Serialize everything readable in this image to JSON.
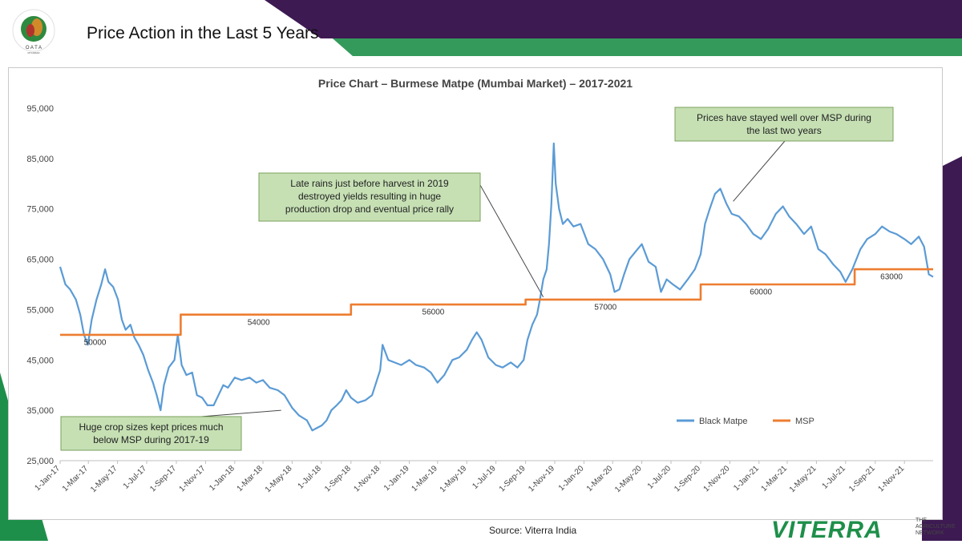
{
  "slide": {
    "title": "Price Action in the Last 5 Years",
    "logo_letters": "O A T A",
    "logo_sub": "MYANMAR",
    "source": "Source: Viterra India",
    "brand_name": "VITERRA",
    "brand_tagline": [
      "THE",
      "AGRICULTURE",
      "NETWORK"
    ],
    "colors": {
      "green": "#1e8f4a",
      "purple": "#3d1a52",
      "callout_fill": "#c6e0b4",
      "callout_border": "#7aa05b"
    }
  },
  "chart_data": {
    "type": "line",
    "title": "Price Chart – Burmese Matpe (Mumbai Market) – 2017-2021",
    "ylim": [
      25000,
      95000
    ],
    "yticks": [
      25000,
      35000,
      45000,
      55000,
      65000,
      75000,
      85000,
      95000
    ],
    "ytick_labels": [
      "25,000",
      "35,000",
      "45,000",
      "55,000",
      "65,000",
      "75,000",
      "85,000",
      "95,000"
    ],
    "xlim": [
      "2017-01-01",
      "2021-12-31"
    ],
    "xtick_labels": [
      "1-Jan-17",
      "1-Mar-17",
      "1-May-17",
      "1-Jul-17",
      "1-Sep-17",
      "1-Nov-17",
      "1-Jan-18",
      "1-Mar-18",
      "1-May-18",
      "1-Jul-18",
      "1-Sep-18",
      "1-Nov-18",
      "1-Jan-19",
      "1-Mar-19",
      "1-May-19",
      "1-Jul-19",
      "1-Sep-19",
      "1-Nov-19",
      "1-Jan-20",
      "1-Mar-20",
      "1-May-20",
      "1-Jul-20",
      "1-Sep-20",
      "1-Nov-20",
      "1-Jan-21",
      "1-Mar-21",
      "1-May-21",
      "1-Jul-21",
      "1-Sep-21",
      "1-Nov-21"
    ],
    "xtick_dates": [
      "2017-01-01",
      "2017-03-01",
      "2017-05-01",
      "2017-07-01",
      "2017-09-01",
      "2017-11-01",
      "2018-01-01",
      "2018-03-01",
      "2018-05-01",
      "2018-07-01",
      "2018-09-01",
      "2018-11-01",
      "2019-01-01",
      "2019-03-01",
      "2019-05-01",
      "2019-07-01",
      "2019-09-01",
      "2019-11-01",
      "2020-01-01",
      "2020-03-01",
      "2020-05-01",
      "2020-07-01",
      "2020-09-01",
      "2020-11-01",
      "2021-01-01",
      "2021-03-01",
      "2021-05-01",
      "2021-07-01",
      "2021-09-01",
      "2021-11-01"
    ],
    "legend": {
      "placement": "bottom-right",
      "entries": [
        "Black Matpe",
        "MSP"
      ]
    },
    "series": [
      {
        "name": "Black Matpe",
        "color": "#5b9bd5",
        "points": [
          [
            "2017-01-01",
            63500
          ],
          [
            "2017-01-12",
            60000
          ],
          [
            "2017-01-22",
            59000
          ],
          [
            "2017-02-03",
            57000
          ],
          [
            "2017-02-12",
            54000
          ],
          [
            "2017-02-20",
            50000
          ],
          [
            "2017-02-28",
            48000
          ],
          [
            "2017-03-08",
            53000
          ],
          [
            "2017-03-18",
            57000
          ],
          [
            "2017-03-28",
            60000
          ],
          [
            "2017-04-05",
            63000
          ],
          [
            "2017-04-12",
            60500
          ],
          [
            "2017-04-22",
            59500
          ],
          [
            "2017-05-02",
            57000
          ],
          [
            "2017-05-10",
            53000
          ],
          [
            "2017-05-18",
            51000
          ],
          [
            "2017-05-28",
            52000
          ],
          [
            "2017-06-05",
            49500
          ],
          [
            "2017-06-14",
            48000
          ],
          [
            "2017-06-24",
            46000
          ],
          [
            "2017-07-04",
            43000
          ],
          [
            "2017-07-14",
            40500
          ],
          [
            "2017-07-22",
            38000
          ],
          [
            "2017-07-30",
            35000
          ],
          [
            "2017-08-06",
            40000
          ],
          [
            "2017-08-16",
            43500
          ],
          [
            "2017-08-28",
            45000
          ],
          [
            "2017-09-04",
            50000
          ],
          [
            "2017-09-12",
            44000
          ],
          [
            "2017-09-22",
            42000
          ],
          [
            "2017-10-04",
            42500
          ],
          [
            "2017-10-14",
            38000
          ],
          [
            "2017-10-25",
            37500
          ],
          [
            "2017-11-05",
            36000
          ],
          [
            "2017-11-18",
            36000
          ],
          [
            "2017-11-28",
            38000
          ],
          [
            "2017-12-08",
            40000
          ],
          [
            "2017-12-18",
            39500
          ],
          [
            "2018-01-01",
            41500
          ],
          [
            "2018-01-15",
            41000
          ],
          [
            "2018-02-01",
            41500
          ],
          [
            "2018-02-15",
            40500
          ],
          [
            "2018-03-01",
            41000
          ],
          [
            "2018-03-15",
            39500
          ],
          [
            "2018-04-01",
            39000
          ],
          [
            "2018-04-15",
            38000
          ],
          [
            "2018-05-01",
            35500
          ],
          [
            "2018-05-15",
            34000
          ],
          [
            "2018-06-01",
            33000
          ],
          [
            "2018-06-12",
            31000
          ],
          [
            "2018-06-22",
            31500
          ],
          [
            "2018-07-02",
            32000
          ],
          [
            "2018-07-12",
            33000
          ],
          [
            "2018-07-22",
            35000
          ],
          [
            "2018-08-02",
            36000
          ],
          [
            "2018-08-12",
            37000
          ],
          [
            "2018-08-22",
            39000
          ],
          [
            "2018-09-01",
            37500
          ],
          [
            "2018-09-15",
            36500
          ],
          [
            "2018-10-01",
            37000
          ],
          [
            "2018-10-15",
            38000
          ],
          [
            "2018-11-01",
            43000
          ],
          [
            "2018-11-06",
            48000
          ],
          [
            "2018-11-18",
            45000
          ],
          [
            "2018-12-01",
            44500
          ],
          [
            "2018-12-15",
            44000
          ],
          [
            "2019-01-01",
            45000
          ],
          [
            "2019-01-15",
            44000
          ],
          [
            "2019-02-01",
            43500
          ],
          [
            "2019-02-15",
            42500
          ],
          [
            "2019-03-01",
            40500
          ],
          [
            "2019-03-15",
            42000
          ],
          [
            "2019-04-01",
            45000
          ],
          [
            "2019-04-15",
            45500
          ],
          [
            "2019-05-01",
            47000
          ],
          [
            "2019-05-12",
            49000
          ],
          [
            "2019-05-22",
            50500
          ],
          [
            "2019-06-01",
            49000
          ],
          [
            "2019-06-15",
            45500
          ],
          [
            "2019-07-01",
            44000
          ],
          [
            "2019-07-15",
            43500
          ],
          [
            "2019-08-01",
            44500
          ],
          [
            "2019-08-15",
            43500
          ],
          [
            "2019-08-28",
            45000
          ],
          [
            "2019-09-05",
            49000
          ],
          [
            "2019-09-15",
            52000
          ],
          [
            "2019-09-25",
            54000
          ],
          [
            "2019-10-01",
            57000
          ],
          [
            "2019-10-08",
            61000
          ],
          [
            "2019-10-15",
            63000
          ],
          [
            "2019-10-20",
            68000
          ],
          [
            "2019-10-25",
            76000
          ],
          [
            "2019-10-30",
            88000
          ],
          [
            "2019-11-03",
            80000
          ],
          [
            "2019-11-10",
            75000
          ],
          [
            "2019-11-18",
            72000
          ],
          [
            "2019-11-28",
            73000
          ],
          [
            "2019-12-10",
            71500
          ],
          [
            "2019-12-25",
            72000
          ],
          [
            "2020-01-10",
            68000
          ],
          [
            "2020-01-25",
            67000
          ],
          [
            "2020-02-10",
            65000
          ],
          [
            "2020-02-25",
            62000
          ],
          [
            "2020-03-05",
            58500
          ],
          [
            "2020-03-15",
            59000
          ],
          [
            "2020-03-25",
            62000
          ],
          [
            "2020-04-05",
            65000
          ],
          [
            "2020-04-18",
            66500
          ],
          [
            "2020-05-01",
            68000
          ],
          [
            "2020-05-15",
            64500
          ],
          [
            "2020-05-30",
            63500
          ],
          [
            "2020-06-10",
            58500
          ],
          [
            "2020-06-22",
            61000
          ],
          [
            "2020-07-05",
            60000
          ],
          [
            "2020-07-20",
            59000
          ],
          [
            "2020-08-05",
            61000
          ],
          [
            "2020-08-20",
            63000
          ],
          [
            "2020-09-01",
            66000
          ],
          [
            "2020-09-10",
            72000
          ],
          [
            "2020-09-20",
            75000
          ],
          [
            "2020-10-01",
            78000
          ],
          [
            "2020-10-12",
            79000
          ],
          [
            "2020-10-25",
            76000
          ],
          [
            "2020-11-05",
            74000
          ],
          [
            "2020-11-20",
            73500
          ],
          [
            "2020-12-05",
            72000
          ],
          [
            "2020-12-20",
            70000
          ],
          [
            "2021-01-05",
            69000
          ],
          [
            "2021-01-20",
            71000
          ],
          [
            "2021-02-05",
            74000
          ],
          [
            "2021-02-20",
            75500
          ],
          [
            "2021-03-05",
            73500
          ],
          [
            "2021-03-20",
            72000
          ],
          [
            "2021-04-05",
            70000
          ],
          [
            "2021-04-20",
            71500
          ],
          [
            "2021-05-05",
            67000
          ],
          [
            "2021-05-20",
            66000
          ],
          [
            "2021-06-05",
            64000
          ],
          [
            "2021-06-20",
            62500
          ],
          [
            "2021-07-01",
            60500
          ],
          [
            "2021-07-15",
            63000
          ],
          [
            "2021-08-01",
            67000
          ],
          [
            "2021-08-15",
            69000
          ],
          [
            "2021-09-01",
            70000
          ],
          [
            "2021-09-15",
            71500
          ],
          [
            "2021-10-01",
            70500
          ],
          [
            "2021-10-15",
            70000
          ],
          [
            "2021-11-01",
            69000
          ],
          [
            "2021-11-15",
            68000
          ],
          [
            "2021-12-01",
            69500
          ],
          [
            "2021-12-12",
            67500
          ],
          [
            "2021-12-22",
            62000
          ],
          [
            "2021-12-31",
            61500
          ]
        ]
      },
      {
        "name": "MSP",
        "color": "#ed7d31",
        "points": [
          [
            "2017-01-01",
            50000
          ],
          [
            "2017-09-10",
            50000
          ],
          [
            "2017-09-10",
            54000
          ],
          [
            "2018-09-01",
            54000
          ],
          [
            "2018-09-01",
            56000
          ],
          [
            "2019-09-01",
            56000
          ],
          [
            "2019-09-01",
            57000
          ],
          [
            "2020-09-01",
            57000
          ],
          [
            "2020-09-01",
            60000
          ],
          [
            "2021-07-20",
            60000
          ],
          [
            "2021-07-20",
            63000
          ],
          [
            "2021-12-31",
            63000
          ]
        ]
      }
    ],
    "msp_labels": [
      {
        "text": "50000",
        "x": "2017-03-15",
        "y": 48000
      },
      {
        "text": "54000",
        "x": "2018-02-20",
        "y": 52000
      },
      {
        "text": "56000",
        "x": "2019-02-20",
        "y": 54000
      },
      {
        "text": "57000",
        "x": "2020-02-15",
        "y": 55000
      },
      {
        "text": "60000",
        "x": "2021-01-05",
        "y": 58000
      },
      {
        "text": "63000",
        "x": "2021-10-05",
        "y": 61000
      }
    ],
    "annotations": [
      {
        "lines": [
          "Late rains just before harvest in 2019",
          "destroyed yields resulting in huge",
          "production drop and eventual price rally"
        ],
        "arrow_to": [
          "2019-10-08",
          57500
        ]
      },
      {
        "lines": [
          "Prices have stayed well over MSP during",
          "the last two years"
        ],
        "arrow_to": [
          "2020-11-08",
          76500
        ]
      },
      {
        "lines": [
          "Huge crop sizes kept prices much",
          "below MSP during 2017-19"
        ],
        "arrow_to": [
          "2018-04-08",
          35000
        ]
      }
    ]
  }
}
